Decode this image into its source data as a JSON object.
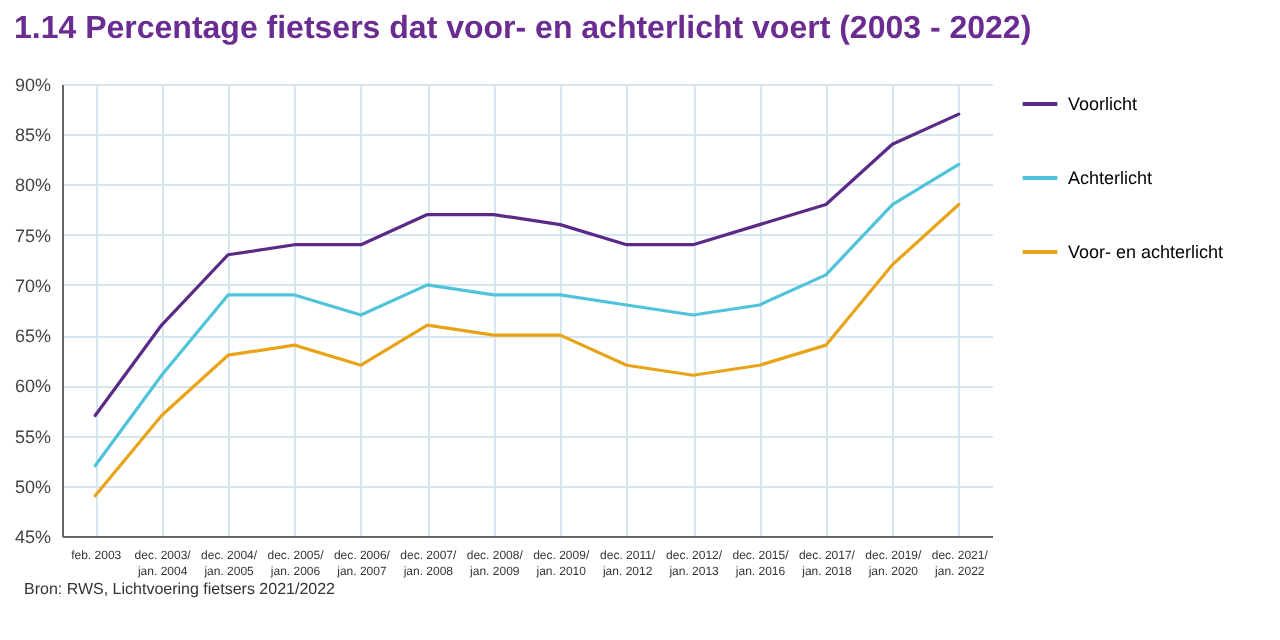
{
  "chart_data": {
    "type": "line",
    "title": "1.14 Percentage fietsers dat voor- en achterlicht voert (2003 - 2022)",
    "categories": [
      "feb. 2003",
      "dec. 2003/\njan. 2004",
      "dec. 2004/\njan. 2005",
      "dec. 2005/\njan. 2006",
      "dec. 2006/\njan. 2007",
      "dec. 2007/\njan. 2008",
      "dec. 2008/\njan. 2009",
      "dec. 2009/\njan. 2010",
      "dec. 2011/\njan. 2012",
      "dec. 2012/\njan. 2013",
      "dec. 2015/\njan. 2016",
      "dec. 2017/\njan. 2018",
      "dec. 2019/\njan. 2020",
      "dec. 2021/\njan. 2022"
    ],
    "series": [
      {
        "name": "Voorlicht",
        "color": "#5b2a86",
        "values": [
          57,
          66,
          73,
          74,
          74,
          77,
          77,
          76,
          74,
          74,
          76,
          78,
          84,
          87
        ]
      },
      {
        "name": "Achterlicht",
        "color": "#4fc3d9",
        "values": [
          52,
          61,
          69,
          69,
          67,
          70,
          69,
          69,
          68,
          67,
          68,
          71,
          78,
          82
        ]
      },
      {
        "name": "Voor- en achterlicht",
        "color": "#e8a317",
        "values": [
          49,
          57,
          63,
          64,
          62,
          66,
          65,
          65,
          62,
          61,
          62,
          64,
          72,
          78
        ]
      }
    ],
    "ylim": [
      45,
      90
    ],
    "yticks": [
      {
        "value": 45,
        "label": "45%"
      },
      {
        "value": 50,
        "label": "50%"
      },
      {
        "value": 55,
        "label": "55%"
      },
      {
        "value": 60,
        "label": "60%"
      },
      {
        "value": 65,
        "label": "65%"
      },
      {
        "value": 70,
        "label": "70%"
      },
      {
        "value": 75,
        "label": "75%"
      },
      {
        "value": 80,
        "label": "80%"
      },
      {
        "value": 85,
        "label": "85%"
      },
      {
        "value": 90,
        "label": "90%"
      }
    ],
    "grid": true,
    "legend": "right",
    "line_style": "solid",
    "annotations": [
      "Bron: RWS, Lichtvoering fietsers 2021/2022"
    ]
  }
}
